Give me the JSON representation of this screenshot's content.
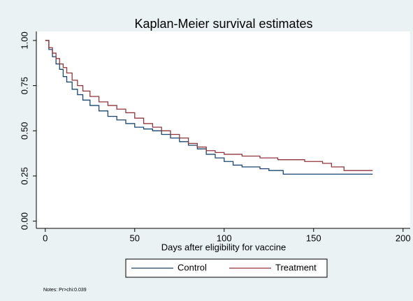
{
  "chart_data": {
    "type": "step",
    "title": "Kaplan-Meier survival estimates",
    "x_label": "Days after eligibility for vaccine",
    "note": "Notes: Pr>chi:0.039",
    "xlim": [
      -5,
      204
    ],
    "xticks": [
      0,
      50,
      100,
      150,
      200
    ],
    "ylim": [
      -0.04,
      1.05
    ],
    "yticks": [
      {
        "value": 0,
        "label": "0.00"
      },
      {
        "value": 0.25,
        "label": "0.25"
      },
      {
        "value": 0.5,
        "label": "0.50"
      },
      {
        "value": 0.75,
        "label": "0.75"
      },
      {
        "value": 1,
        "label": "1.00"
      }
    ],
    "legend": "bottom",
    "series": [
      {
        "name": "Control",
        "color": "#1a476f",
        "x": [
          0,
          2,
          4,
          6,
          8,
          10,
          12,
          15,
          18,
          21,
          25,
          30,
          35,
          40,
          45,
          50,
          55,
          60,
          65,
          70,
          75,
          80,
          85,
          90,
          95,
          100,
          105,
          110,
          120,
          125,
          133,
          183
        ],
        "values": [
          1.0,
          0.95,
          0.91,
          0.87,
          0.84,
          0.8,
          0.77,
          0.73,
          0.7,
          0.67,
          0.64,
          0.61,
          0.58,
          0.56,
          0.54,
          0.52,
          0.51,
          0.5,
          0.48,
          0.46,
          0.44,
          0.42,
          0.4,
          0.37,
          0.35,
          0.33,
          0.31,
          0.3,
          0.29,
          0.28,
          0.26,
          0.26
        ]
      },
      {
        "name": "Treatment",
        "color": "#90353b",
        "x": [
          0,
          2,
          4,
          6,
          8,
          10,
          12,
          15,
          18,
          21,
          25,
          30,
          35,
          40,
          45,
          50,
          55,
          60,
          65,
          70,
          75,
          80,
          85,
          90,
          95,
          100,
          110,
          120,
          130,
          145,
          155,
          160,
          167,
          183
        ],
        "values": [
          1.0,
          0.96,
          0.93,
          0.9,
          0.87,
          0.85,
          0.82,
          0.78,
          0.75,
          0.72,
          0.69,
          0.66,
          0.64,
          0.62,
          0.6,
          0.57,
          0.54,
          0.52,
          0.5,
          0.48,
          0.46,
          0.43,
          0.41,
          0.39,
          0.38,
          0.37,
          0.36,
          0.35,
          0.34,
          0.33,
          0.32,
          0.3,
          0.28,
          0.28
        ]
      }
    ]
  }
}
